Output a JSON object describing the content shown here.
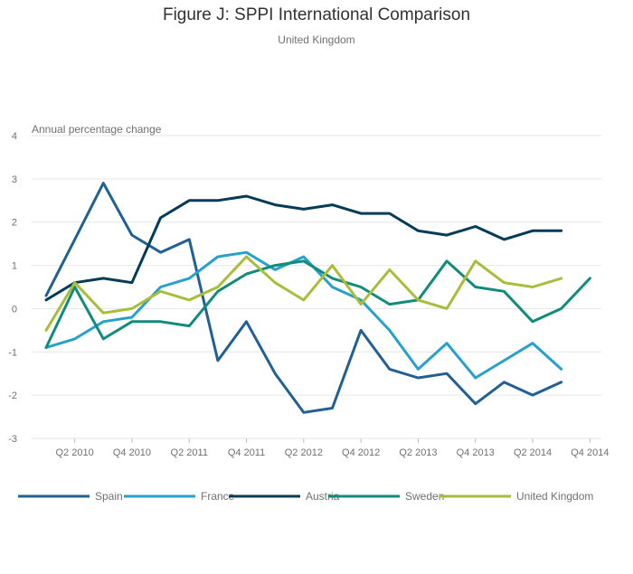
{
  "title": "Figure J: SPPI International Comparison",
  "subtitle": "United Kingdom",
  "chart_data": {
    "type": "line",
    "title": "Figure J: SPPI International Comparison",
    "subtitle": "United Kingdom",
    "ylabel": "Annual percentage change",
    "xlabel": "",
    "ylim": [
      -3,
      4
    ],
    "yticks": [
      4,
      3,
      2,
      1,
      0,
      -1,
      -2,
      -3
    ],
    "grid": true,
    "legend_position": "bottom",
    "x": [
      "Q1 2010",
      "Q2 2010",
      "Q3 2010",
      "Q4 2010",
      "Q1 2011",
      "Q2 2011",
      "Q3 2011",
      "Q4 2011",
      "Q1 2012",
      "Q2 2012",
      "Q3 2012",
      "Q4 2012",
      "Q1 2013",
      "Q2 2013",
      "Q3 2013",
      "Q4 2013",
      "Q1 2014",
      "Q2 2014",
      "Q3 2014",
      "Q4 2014"
    ],
    "xtick_labels": [
      "Q2 2010",
      "Q4 2010",
      "Q2 2011",
      "Q4 2011",
      "Q2 2012",
      "Q4 2012",
      "Q2 2013",
      "Q4 2013",
      "Q2 2014",
      "Q4 2014"
    ],
    "series": [
      {
        "name": "Spain",
        "color": "#206095",
        "values": [
          0.3,
          1.6,
          2.9,
          1.7,
          1.3,
          1.6,
          -1.2,
          -0.3,
          -1.5,
          -2.4,
          -2.3,
          -0.5,
          -1.4,
          -1.6,
          -1.5,
          -2.2,
          -1.7,
          -2.0,
          -1.7,
          null
        ]
      },
      {
        "name": "France",
        "color": "#27a0cc",
        "values": [
          -0.9,
          -0.7,
          -0.3,
          -0.2,
          0.5,
          0.7,
          1.2,
          1.3,
          0.9,
          1.2,
          0.5,
          0.2,
          -0.5,
          -1.4,
          -0.8,
          -1.6,
          -1.2,
          -0.8,
          -1.4,
          null
        ]
      },
      {
        "name": "Austria",
        "color": "#003c57",
        "values": [
          0.2,
          0.6,
          0.7,
          0.6,
          2.1,
          2.5,
          2.5,
          2.6,
          2.4,
          2.3,
          2.4,
          2.2,
          2.2,
          1.8,
          1.7,
          1.9,
          1.6,
          1.8,
          1.8,
          null
        ]
      },
      {
        "name": "Sweden",
        "color": "#118c7b",
        "values": [
          -0.9,
          0.5,
          -0.7,
          -0.3,
          -0.3,
          -0.4,
          0.4,
          0.8,
          1.0,
          1.1,
          0.7,
          0.5,
          0.1,
          0.2,
          1.1,
          0.5,
          0.4,
          -0.3,
          0.0,
          0.7
        ]
      },
      {
        "name": "United Kingdom",
        "color": "#a8bd3a",
        "values": [
          -0.5,
          0.6,
          -0.1,
          0.0,
          0.4,
          0.2,
          0.5,
          1.2,
          0.6,
          0.2,
          1.0,
          0.1,
          0.9,
          0.2,
          0.0,
          1.1,
          0.6,
          0.5,
          0.7,
          null
        ]
      }
    ]
  }
}
